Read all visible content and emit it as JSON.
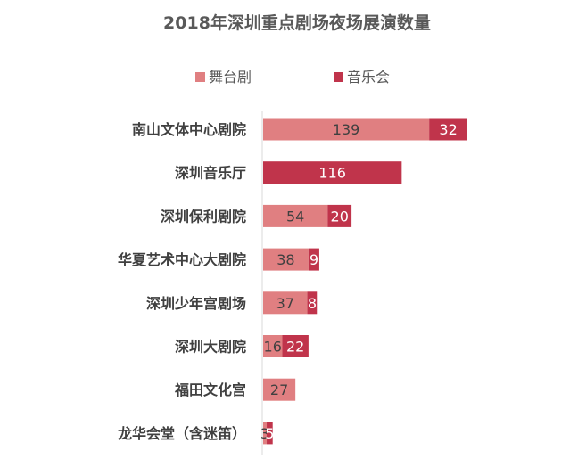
{
  "chart_data": {
    "type": "bar",
    "orientation": "horizontal",
    "stacked": true,
    "title": "2018年深圳重点剧场夜场展演数量",
    "categories": [
      "南山文体中心剧院",
      "深圳音乐厅",
      "深圳保利剧院",
      "华夏艺术中心大剧院",
      "深圳少年宫剧场",
      "深圳大剧院",
      "福田文化宫",
      "龙华会堂（含迷笛）"
    ],
    "series": [
      {
        "name": "舞台剧",
        "color": "#E07F81",
        "values": [
          139,
          0,
          54,
          38,
          37,
          16,
          27,
          3
        ],
        "labels": [
          "139",
          "",
          "54",
          "38",
          "37",
          "16",
          "27",
          "3"
        ]
      },
      {
        "name": "音乐会",
        "color": "#C0344B",
        "values": [
          32,
          116,
          20,
          9,
          8,
          22,
          0,
          5
        ],
        "labels": [
          "32",
          "116",
          "20",
          "9",
          "8",
          "22",
          "",
          "5"
        ]
      }
    ],
    "legend_position": "top",
    "grid": false,
    "xlim": [
      0,
      171
    ],
    "axis_line_color": "#D9D9D9"
  }
}
